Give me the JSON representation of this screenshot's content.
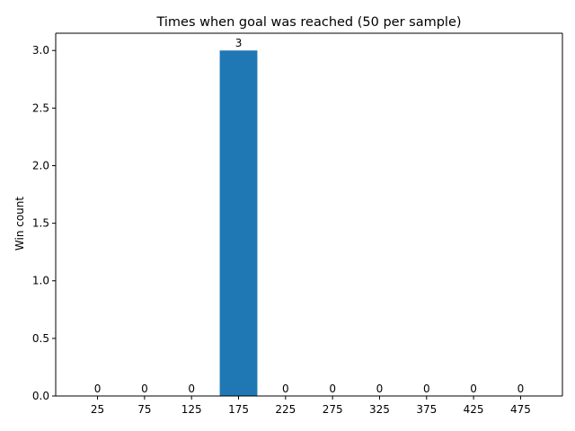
{
  "chart_data": {
    "type": "bar",
    "title": "Times when goal was reached (50 per sample)",
    "xlabel": "",
    "ylabel": "Win count",
    "categories": [
      "25",
      "75",
      "125",
      "175",
      "225",
      "275",
      "325",
      "375",
      "425",
      "475"
    ],
    "values": [
      0,
      0,
      0,
      3,
      0,
      0,
      0,
      0,
      0,
      0
    ],
    "data_labels": [
      "0",
      "0",
      "0",
      "3",
      "0",
      "0",
      "0",
      "0",
      "0",
      "0"
    ],
    "ylim": [
      0,
      3.15
    ],
    "yticks": [
      "0.0",
      "0.5",
      "1.0",
      "1.5",
      "2.0",
      "2.5",
      "3.0"
    ],
    "ytick_values": [
      0,
      0.5,
      1.0,
      1.5,
      2.0,
      2.5,
      3.0
    ],
    "grid": false,
    "bar_color": "#1f77b4"
  }
}
